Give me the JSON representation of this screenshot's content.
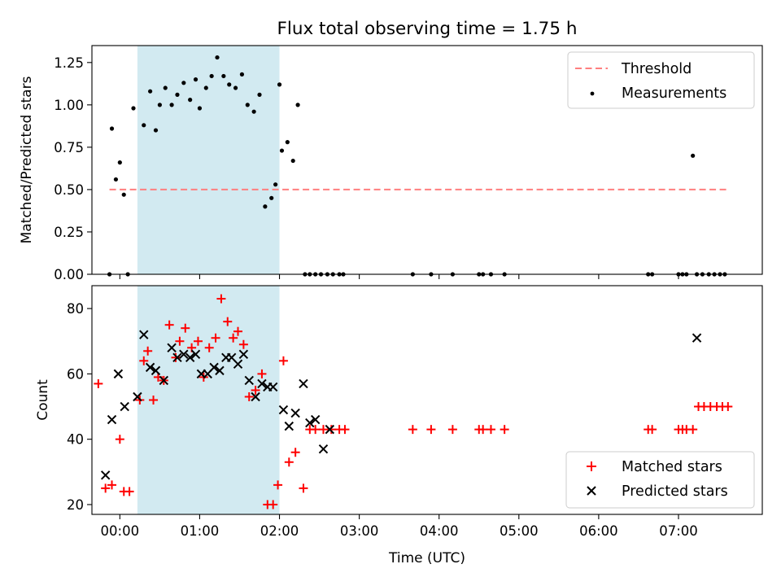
{
  "chart_data": [
    {
      "type": "scatter",
      "title": "Flux total observing time = 1.75 h",
      "xlabel": "",
      "ylabel": "Matched/Predicted stars",
      "ylim": [
        0,
        1.35
      ],
      "xlim": [
        -0.35,
        8.05
      ],
      "x_unit": "hours after 00:00 UTC",
      "xticks": [
        0,
        1,
        2,
        3,
        4,
        5,
        6,
        7
      ],
      "yticks": [
        0.0,
        0.25,
        0.5,
        0.75,
        1.0,
        1.25
      ],
      "ytick_labels": [
        "0.00",
        "0.25",
        "0.50",
        "0.75",
        "1.00",
        "1.25"
      ],
      "highlight_span": [
        0.22,
        2.0
      ],
      "highlight_color": "#add8e6",
      "legend_position": "upper right",
      "legend": [
        "Threshold",
        "Measurements"
      ],
      "threshold": {
        "name": "Threshold",
        "y": 0.5,
        "x_range": [
          -0.13,
          7.6
        ],
        "color": "#ff7f7f",
        "style": "dashed"
      },
      "series": [
        {
          "name": "Measurements",
          "color": "#000000",
          "marker": "dot",
          "x": [
            -0.13,
            -0.1,
            -0.05,
            0.0,
            0.05,
            0.1,
            0.17,
            0.3,
            0.38,
            0.45,
            0.5,
            0.57,
            0.65,
            0.72,
            0.8,
            0.88,
            0.95,
            1.0,
            1.08,
            1.15,
            1.22,
            1.3,
            1.37,
            1.45,
            1.53,
            1.6,
            1.68,
            1.75,
            1.82,
            1.9,
            1.95,
            2.0,
            2.03,
            2.1,
            2.17,
            2.23,
            2.32,
            2.38,
            2.45,
            2.52,
            2.6,
            2.67,
            2.75,
            2.8,
            3.67,
            3.9,
            4.17,
            4.5,
            4.55,
            4.65,
            4.82,
            6.62,
            6.67,
            7.0,
            7.05,
            7.1,
            7.18,
            7.23,
            7.3,
            7.38,
            7.45,
            7.52,
            7.58
          ],
          "y": [
            0.0,
            0.86,
            0.56,
            0.66,
            0.47,
            0.0,
            0.98,
            0.88,
            1.08,
            0.85,
            1.0,
            1.1,
            1.0,
            1.06,
            1.13,
            1.03,
            1.15,
            0.98,
            1.1,
            1.17,
            1.28,
            1.17,
            1.12,
            1.1,
            1.18,
            1.0,
            0.96,
            1.06,
            0.4,
            0.45,
            0.53,
            1.12,
            0.73,
            0.78,
            0.67,
            1.0,
            0.0,
            0.0,
            0.0,
            0.0,
            0.0,
            0.0,
            0.0,
            0.0,
            0.0,
            0.0,
            0.0,
            0.0,
            0.0,
            0.0,
            0.0,
            0.0,
            0.0,
            0.0,
            0.0,
            0.0,
            0.7,
            0.0,
            0.0,
            0.0,
            0.0,
            0.0,
            0.0
          ]
        }
      ]
    },
    {
      "type": "scatter",
      "title": "",
      "xlabel": "Time (UTC)",
      "ylabel": "Count",
      "ylim": [
        17,
        87
      ],
      "xlim": [
        -0.35,
        8.05
      ],
      "x_unit": "hours after 00:00 UTC",
      "xticks": [
        0,
        1,
        2,
        3,
        4,
        5,
        6,
        7
      ],
      "xtick_labels": [
        "00:00",
        "01:00",
        "02:00",
        "03:00",
        "04:00",
        "05:00",
        "06:00",
        "07:00"
      ],
      "yticks": [
        20,
        40,
        60,
        80
      ],
      "ytick_labels": [
        "20",
        "40",
        "60",
        "80"
      ],
      "highlight_span": [
        0.22,
        2.0
      ],
      "highlight_color": "#add8e6",
      "legend_position": "lower right",
      "legend": [
        "Matched stars",
        "Predicted stars"
      ],
      "series": [
        {
          "name": "Matched stars",
          "color": "#ff0000",
          "marker": "plus",
          "x": [
            -0.27,
            -0.18,
            -0.1,
            0.0,
            0.05,
            0.12,
            0.25,
            0.3,
            0.35,
            0.42,
            0.48,
            0.55,
            0.62,
            0.7,
            0.75,
            0.82,
            0.9,
            0.98,
            1.05,
            1.12,
            1.2,
            1.27,
            1.35,
            1.42,
            1.48,
            1.55,
            1.62,
            1.7,
            1.78,
            1.85,
            1.92,
            1.98,
            2.05,
            2.12,
            2.2,
            2.3,
            2.38,
            2.45,
            2.55,
            2.65,
            2.75,
            2.82,
            3.67,
            3.9,
            4.17,
            4.5,
            4.55,
            4.65,
            4.82,
            6.62,
            6.67,
            7.0,
            7.05,
            7.1,
            7.18,
            7.25,
            7.32,
            7.4,
            7.48,
            7.55,
            7.62
          ],
          "y": [
            57,
            25,
            26,
            40,
            24,
            24,
            52,
            64,
            67,
            52,
            59,
            58,
            75,
            65,
            70,
            74,
            68,
            70,
            59,
            68,
            71,
            83,
            76,
            71,
            73,
            69,
            53,
            55,
            60,
            20,
            20,
            26,
            64,
            33,
            36,
            25,
            43,
            43,
            43,
            43,
            43,
            43,
            43,
            43,
            43,
            43,
            43,
            43,
            43,
            43,
            43,
            43,
            43,
            43,
            43,
            50,
            50,
            50,
            50,
            50,
            50
          ],
          "x_note": ""
        },
        {
          "name": "Predicted stars",
          "color": "#000000",
          "marker": "x",
          "x": [
            -0.18,
            -0.1,
            -0.02,
            0.06,
            0.22,
            0.3,
            0.38,
            0.45,
            0.55,
            0.65,
            0.72,
            0.8,
            0.88,
            0.95,
            1.02,
            1.1,
            1.18,
            1.25,
            1.33,
            1.4,
            1.48,
            1.55,
            1.62,
            1.7,
            1.78,
            1.85,
            1.92,
            2.05,
            2.12,
            2.2,
            2.3,
            2.38,
            2.45,
            2.55,
            2.63,
            7.23
          ],
          "y": [
            29,
            46,
            60,
            50,
            53,
            72,
            62,
            61,
            58,
            68,
            65,
            66,
            65,
            66,
            60,
            60,
            62,
            61,
            65,
            65,
            63,
            66,
            58,
            53,
            57,
            56,
            56,
            49,
            44,
            48,
            57,
            45,
            46,
            37,
            43,
            71
          ]
        }
      ]
    }
  ]
}
